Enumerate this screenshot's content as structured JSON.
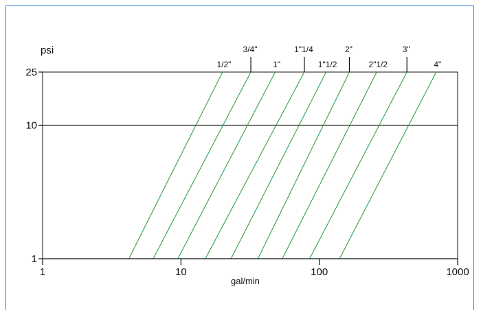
{
  "colors": {
    "frame": "#2f7fc0",
    "axis": "#111111",
    "series": "#1a9a3a",
    "background": "#ffffff"
  },
  "chart_data": {
    "type": "line",
    "x_scale": "log",
    "y_scale": "log",
    "xlim": [
      1,
      1000
    ],
    "ylim": [
      1,
      25
    ],
    "xlabel": "gal/min",
    "ylabel": "psi",
    "x_ticks": [
      1,
      10,
      100,
      1000
    ],
    "x_tick_labels": [
      "1",
      "10",
      "100",
      "1000"
    ],
    "y_ticks": [
      1,
      10,
      25
    ],
    "y_tick_labels": [
      "1",
      "10",
      "25"
    ],
    "gridlines_y": [
      10,
      25
    ],
    "legend": "labels above plot, alternating two rows",
    "series": [
      {
        "name": "1/2\"",
        "x": [
          4.2,
          20.0
        ],
        "y": [
          1,
          25
        ],
        "label_row": "low"
      },
      {
        "name": "3/4\"",
        "x": [
          6.3,
          32.0
        ],
        "y": [
          1,
          25
        ],
        "label_row": "high"
      },
      {
        "name": "1\"",
        "x": [
          9.5,
          48.0
        ],
        "y": [
          1,
          25
        ],
        "label_row": "low"
      },
      {
        "name": "1\"1/4",
        "x": [
          15.0,
          78.0
        ],
        "y": [
          1,
          25
        ],
        "label_row": "high"
      },
      {
        "name": "1\"1/2",
        "x": [
          23.0,
          112.0
        ],
        "y": [
          1,
          25
        ],
        "label_row": "low"
      },
      {
        "name": "2\"",
        "x": [
          36.0,
          165.0
        ],
        "y": [
          1,
          25
        ],
        "label_row": "high"
      },
      {
        "name": "2\"1/2",
        "x": [
          54.0,
          260.0
        ],
        "y": [
          1,
          25
        ],
        "label_row": "low"
      },
      {
        "name": "3\"",
        "x": [
          85.0,
          430.0
        ],
        "y": [
          1,
          25
        ],
        "label_row": "high"
      },
      {
        "name": "4\"",
        "x": [
          140.0,
          700.0
        ],
        "y": [
          1,
          25
        ],
        "label_row": "low"
      }
    ]
  }
}
